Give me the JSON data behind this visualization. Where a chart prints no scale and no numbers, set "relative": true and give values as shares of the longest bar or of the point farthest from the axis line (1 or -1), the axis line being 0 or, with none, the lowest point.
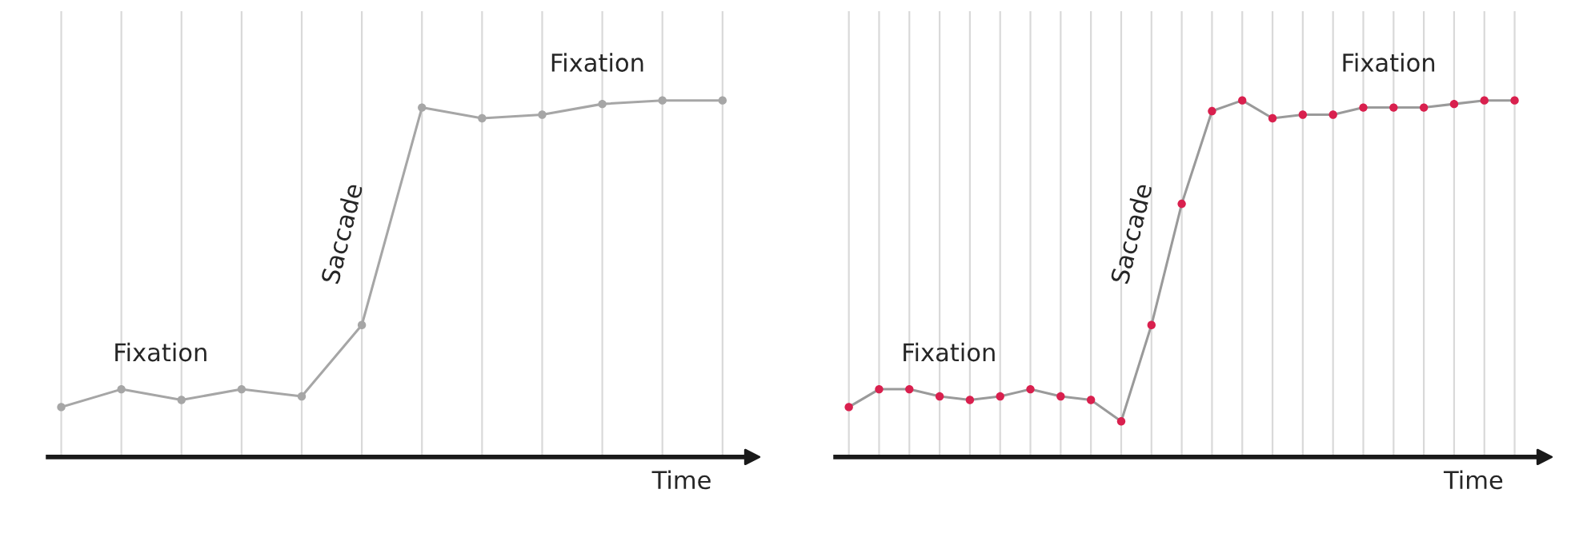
{
  "chart_data": [
    {
      "type": "line",
      "relative": true,
      "xlabel": "Time",
      "marker": "circle",
      "grid": "x",
      "categories": [
        null,
        null,
        null,
        null,
        null,
        null,
        null,
        null,
        null,
        null,
        null,
        null
      ],
      "annotations": [
        "Fixation",
        "Saccade",
        "Fixation"
      ],
      "series": [
        {
          "color": "#a6a6a6",
          "values": [
            0.14,
            0.19,
            0.16,
            0.19,
            0.17,
            0.37,
            0.98,
            0.95,
            0.96,
            0.99,
            1.0,
            1.0
          ]
        }
      ]
    },
    {
      "type": "line",
      "relative": true,
      "xlabel": "Time",
      "marker": "circle",
      "grid": "x",
      "categories": [
        null,
        null,
        null,
        null,
        null,
        null,
        null,
        null,
        null,
        null,
        null,
        null,
        null,
        null,
        null,
        null,
        null,
        null,
        null,
        null,
        null,
        null,
        null
      ],
      "annotations": [
        "Fixation",
        "Saccade",
        "Fixation"
      ],
      "series": [
        {
          "color": "#9a9a9a",
          "colors": [
            "#d9204e",
            "#d9204e",
            "#d9204e",
            "#d9204e",
            "#d9204e",
            "#d9204e",
            "#d9204e",
            "#d9204e",
            "#d9204e",
            "#d9204e",
            "#d9204e",
            "#d9204e",
            "#d9204e",
            "#d9204e",
            "#d9204e",
            "#d9204e",
            "#d9204e",
            "#d9204e",
            "#d9204e",
            "#d9204e",
            "#d9204e",
            "#d9204e",
            "#d9204e"
          ],
          "values": [
            0.14,
            0.19,
            0.19,
            0.17,
            0.16,
            0.17,
            0.19,
            0.17,
            0.16,
            0.1,
            0.37,
            0.71,
            0.97,
            1.0,
            0.95,
            0.96,
            0.96,
            0.98,
            0.98,
            0.98,
            0.99,
            1.0,
            1.0
          ]
        }
      ]
    }
  ]
}
